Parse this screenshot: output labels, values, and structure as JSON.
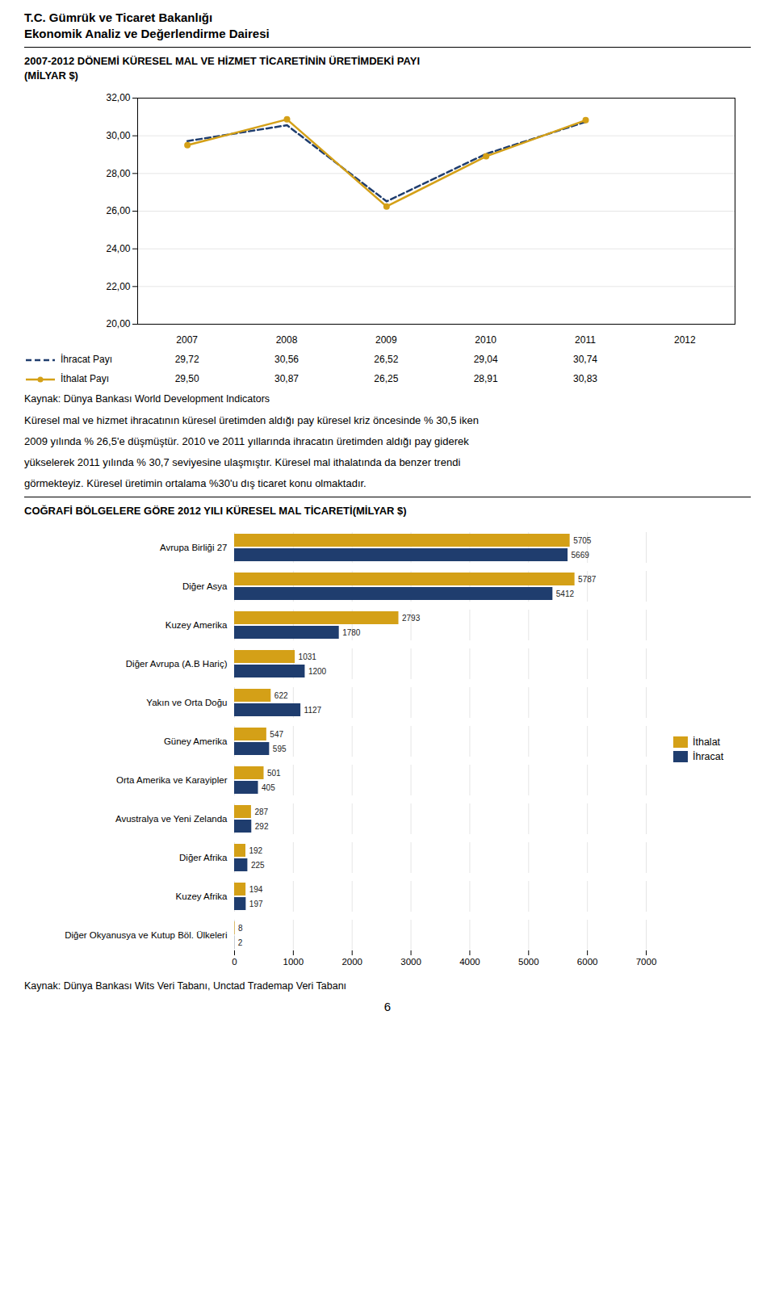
{
  "header": [
    "T.C. Gümrük ve Ticaret Bakanlığı",
    "Ekonomik Analiz ve Değerlendirme Dairesi"
  ],
  "text": [
    "Küresel mal ve hizmet ihracatının küresel üretimden aldığı pay küresel kriz öncesinde % 30,5 iken",
    "2009 yılında % 26,5'e düşmüştür. 2010 ve 2011 yıllarında ihracatın üretimden aldığı pay giderek",
    "yükselerek 2011 yılında % 30,7 seviyesine ulaşmıştır. Küresel mal ithalatında da benzer trendi",
    "görmekteyiz. Küresel üretimin ortalama %30'u dış ticaret konu olmaktadır."
  ],
  "page_number": "6",
  "chart_data": [
    {
      "type": "line",
      "title": "2007-2012 DÖNEMİ KÜRESEL MAL VE HİZMET TİCARETİNİN ÜRETİMDEKİ PAYI\n(MİLYAR $)",
      "source": "Kaynak: Dünya Bankası World Development Indicators",
      "x": [
        2007,
        2008,
        2009,
        2010,
        2011,
        2012
      ],
      "xlim": [
        2006.5,
        2012.5
      ],
      "ylim": [
        20.0,
        32.0
      ],
      "yticks": [
        {
          "value": 20,
          "label": "20,00"
        },
        {
          "value": 22,
          "label": "22,00"
        },
        {
          "value": 24,
          "label": "24,00"
        },
        {
          "value": 26,
          "label": "26,00"
        },
        {
          "value": 28,
          "label": "28,00"
        },
        {
          "value": 30,
          "label": "30,00"
        },
        {
          "value": 32,
          "label": "32,00"
        }
      ],
      "grid": true,
      "legend": "bottom",
      "tick_labels": "y",
      "series": [
        {
          "name": "İhracat Payı",
          "color": "#1f3d6e",
          "line_style": "dashed",
          "values": [
            29.72,
            30.56,
            26.52,
            29.04,
            30.74,
            null
          ],
          "value_labels": [
            "29,72",
            "30,56",
            "26,52",
            "29,04",
            "30,74",
            null
          ]
        },
        {
          "name": "İthalat Payı",
          "color": "#d4a017",
          "line_style": "solid",
          "marker": "circle",
          "values": [
            29.5,
            30.87,
            26.25,
            28.91,
            30.83,
            null
          ],
          "value_labels": [
            "29,50",
            "30,87",
            "26,25",
            "28,91",
            "30,83",
            null
          ]
        }
      ]
    },
    {
      "type": "bar",
      "orientation": "horizontal",
      "title": "COĞRAFİ BÖLGELERE GÖRE 2012 YILI KÜRESEL MAL TİCARETİ(MİLYAR $)",
      "source": "Kaynak: Dünya Bankası Wits Veri Tabanı, Unctad Trademap Veri Tabanı",
      "categories": [
        "Avrupa Birliği 27",
        "Diğer Asya",
        "Kuzey Amerika",
        "Diğer Avrupa (A.B Hariç)",
        "Yakın ve Orta Doğu",
        "Güney Amerika",
        "Orta Amerika ve Karayipler",
        "Avustralya ve Yeni Zelanda",
        "Diğer Afrika",
        "Kuzey Afrika",
        "Diğer Okyanusya ve Kutup Böl. Ülkeleri"
      ],
      "series": [
        {
          "name": "İthalat",
          "color": "#d4a017",
          "values": [
            5705,
            5787,
            2793,
            1031,
            622,
            547,
            501,
            287,
            192,
            194,
            8
          ]
        },
        {
          "name": "İhracat",
          "color": "#1f3d6e",
          "values": [
            5669,
            5412,
            1780,
            1200,
            1127,
            595,
            405,
            292,
            225,
            197,
            2
          ]
        }
      ],
      "xlim": [
        0,
        7000
      ],
      "xticks": [
        0,
        1000,
        2000,
        3000,
        4000,
        5000,
        6000,
        7000
      ],
      "grid": true,
      "data_labels": true,
      "legend": "right"
    }
  ]
}
